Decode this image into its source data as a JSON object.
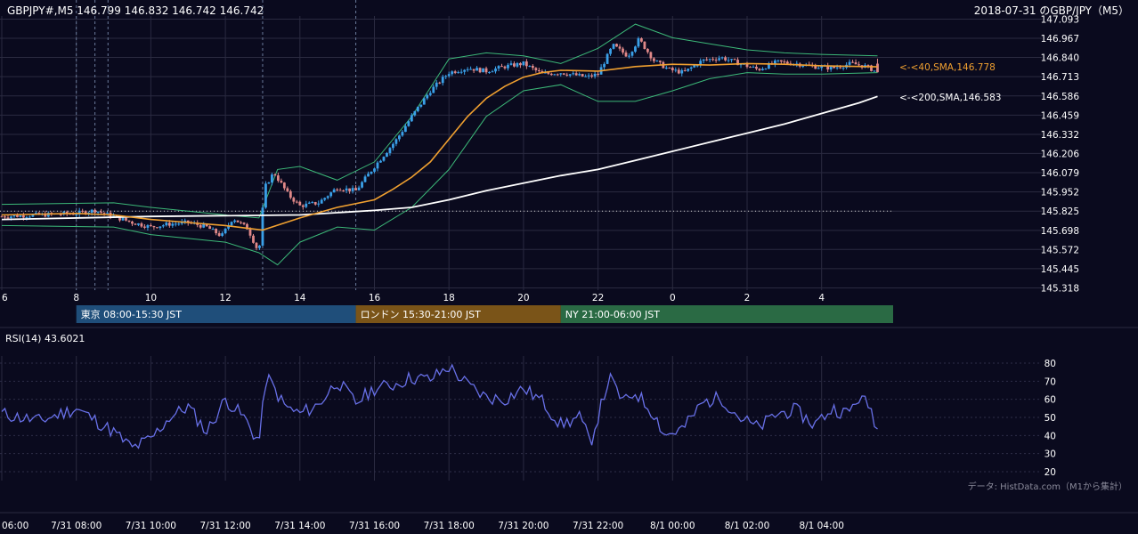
{
  "header": {
    "symbol_info": "GBPJPY#,M5 146.799 146.832 146.742 146.742",
    "title": "2018-07-31 のGBP/JPY（M5）"
  },
  "price_axis": {
    "ticks": [
      "147.093",
      "146.967",
      "146.840",
      "146.713",
      "146.586",
      "146.459",
      "146.332",
      "146.206",
      "146.079",
      "145.952",
      "145.825",
      "145.698",
      "145.572",
      "145.445",
      "145.318"
    ]
  },
  "hour_axis": {
    "ticks": [
      "6",
      "8",
      "10",
      "12",
      "14",
      "16",
      "18",
      "20",
      "22",
      "0",
      "2",
      "4"
    ]
  },
  "sma_labels": {
    "sma40": "<-<40,SMA,146.778",
    "sma200": "<-<200,SMA,146.583"
  },
  "sessions": [
    {
      "label": "東京 08:00-15:30 JST",
      "color": "#1f4e7a"
    },
    {
      "label": "ロンドン 15:30-21:00 JST",
      "color": "#7a5418"
    },
    {
      "label": "NY 21:00-06:00 JST",
      "color": "#2a6a44"
    }
  ],
  "rsi": {
    "label": "RSI(14) 43.6021",
    "ticks": [
      "80",
      "70",
      "60",
      "50",
      "40",
      "30",
      "20"
    ]
  },
  "source_note": "データ: HistData.com（M1から集計）",
  "date_axis": {
    "ticks": [
      "06:00",
      "7/31 08:00",
      "7/31 10:00",
      "7/31 12:00",
      "7/31 14:00",
      "7/31 16:00",
      "7/31 18:00",
      "7/31 20:00",
      "7/31 22:00",
      "8/1 00:00",
      "8/1 02:00",
      "8/1 04:00"
    ]
  },
  "colors": {
    "background": "#0a0a1e",
    "bull": "#3aa0e8",
    "bear": "#e08888",
    "sma40": "#f0a030",
    "sma200": "#ffffff",
    "bands": "#3cb878",
    "rsi_line": "#6870e8",
    "grid": "#2a2a40"
  },
  "chart_data": {
    "type": "candlestick",
    "title": "2018-07-31 のGBP/JPY（M5）",
    "symbol": "GBPJPY#",
    "timeframe": "M5",
    "ylim": [
      145.318,
      147.093
    ],
    "last_ohlc": {
      "open": 146.799,
      "high": 146.832,
      "low": 146.742,
      "close": 146.742
    },
    "sma40_last": 146.778,
    "sma200_last": 146.583,
    "reference_level": 145.825,
    "rsi_period": 14,
    "rsi_last": 43.6021,
    "rsi_ylim": [
      20,
      80
    ],
    "x_hour_ticks": [
      6,
      8,
      10,
      12,
      14,
      16,
      18,
      20,
      22,
      0,
      2,
      4
    ],
    "sessions_jst": [
      {
        "name": "東京",
        "start": "08:00",
        "end": "15:30"
      },
      {
        "name": "ロンドン",
        "start": "15:30",
        "end": "21:00"
      },
      {
        "name": "NY",
        "start": "21:00",
        "end": "06:00"
      }
    ],
    "close_path": [
      {
        "hour": 6.0,
        "close": 145.79
      },
      {
        "hour": 7.0,
        "close": 145.8
      },
      {
        "hour": 8.0,
        "close": 145.81
      },
      {
        "hour": 8.5,
        "close": 145.83
      },
      {
        "hour": 9.0,
        "close": 145.79
      },
      {
        "hour": 9.5,
        "close": 145.75
      },
      {
        "hour": 10.0,
        "close": 145.72
      },
      {
        "hour": 10.5,
        "close": 145.74
      },
      {
        "hour": 11.0,
        "close": 145.75
      },
      {
        "hour": 11.5,
        "close": 145.72
      },
      {
        "hour": 11.9,
        "close": 145.66
      },
      {
        "hour": 12.2,
        "close": 145.78
      },
      {
        "hour": 12.6,
        "close": 145.71
      },
      {
        "hour": 12.9,
        "close": 145.55
      },
      {
        "hour": 13.05,
        "close": 145.98
      },
      {
        "hour": 13.3,
        "close": 146.08
      },
      {
        "hour": 13.7,
        "close": 145.93
      },
      {
        "hour": 14.0,
        "close": 145.86
      },
      {
        "hour": 14.5,
        "close": 145.88
      },
      {
        "hour": 15.0,
        "close": 145.98
      },
      {
        "hour": 15.5,
        "close": 145.96
      },
      {
        "hour": 16.0,
        "close": 146.12
      },
      {
        "hour": 16.6,
        "close": 146.3
      },
      {
        "hour": 17.0,
        "close": 146.45
      },
      {
        "hour": 17.5,
        "close": 146.62
      },
      {
        "hour": 18.0,
        "close": 146.74
      },
      {
        "hour": 18.5,
        "close": 146.77
      },
      {
        "hour": 19.0,
        "close": 146.75
      },
      {
        "hour": 19.5,
        "close": 146.78
      },
      {
        "hour": 20.0,
        "close": 146.8
      },
      {
        "hour": 20.5,
        "close": 146.73
      },
      {
        "hour": 21.0,
        "close": 146.74
      },
      {
        "hour": 21.7,
        "close": 146.71
      },
      {
        "hour": 22.0,
        "close": 146.73
      },
      {
        "hour": 22.4,
        "close": 146.92
      },
      {
        "hour": 22.8,
        "close": 146.85
      },
      {
        "hour": 23.1,
        "close": 146.96
      },
      {
        "hour": 23.5,
        "close": 146.82
      },
      {
        "hour": 23.9,
        "close": 146.76
      },
      {
        "hour": 24.3,
        "close": 146.74
      },
      {
        "hour": 24.8,
        "close": 146.82
      },
      {
        "hour": 25.3,
        "close": 146.84
      },
      {
        "hour": 25.8,
        "close": 146.8
      },
      {
        "hour": 26.3,
        "close": 146.76
      },
      {
        "hour": 26.8,
        "close": 146.81
      },
      {
        "hour": 27.3,
        "close": 146.8
      },
      {
        "hour": 27.8,
        "close": 146.78
      },
      {
        "hour": 28.3,
        "close": 146.77
      },
      {
        "hour": 28.8,
        "close": 146.8
      },
      {
        "hour": 29.2,
        "close": 146.78
      },
      {
        "hour": 29.5,
        "close": 146.742
      }
    ],
    "sma40_path": [
      {
        "hour": 6.0,
        "value": 145.8
      },
      {
        "hour": 8.0,
        "value": 145.81
      },
      {
        "hour": 9.0,
        "value": 145.8
      },
      {
        "hour": 10.0,
        "value": 145.77
      },
      {
        "hour": 11.0,
        "value": 145.75
      },
      {
        "hour": 12.0,
        "value": 145.73
      },
      {
        "hour": 13.0,
        "value": 145.7
      },
      {
        "hour": 14.0,
        "value": 145.78
      },
      {
        "hour": 15.0,
        "value": 145.85
      },
      {
        "hour": 16.0,
        "value": 145.9
      },
      {
        "hour": 16.5,
        "value": 145.97
      },
      {
        "hour": 17.0,
        "value": 146.05
      },
      {
        "hour": 17.5,
        "value": 146.15
      },
      {
        "hour": 18.0,
        "value": 146.3
      },
      {
        "hour": 18.5,
        "value": 146.45
      },
      {
        "hour": 19.0,
        "value": 146.57
      },
      {
        "hour": 19.5,
        "value": 146.65
      },
      {
        "hour": 20.0,
        "value": 146.71
      },
      {
        "hour": 20.5,
        "value": 146.74
      },
      {
        "hour": 21.0,
        "value": 146.755
      },
      {
        "hour": 22.0,
        "value": 146.75
      },
      {
        "hour": 23.0,
        "value": 146.78
      },
      {
        "hour": 24.0,
        "value": 146.795
      },
      {
        "hour": 25.0,
        "value": 146.79
      },
      {
        "hour": 26.0,
        "value": 146.8
      },
      {
        "hour": 27.0,
        "value": 146.795
      },
      {
        "hour": 28.0,
        "value": 146.785
      },
      {
        "hour": 29.5,
        "value": 146.778
      }
    ],
    "sma200_path": [
      {
        "hour": 6.0,
        "value": 145.77
      },
      {
        "hour": 10.0,
        "value": 145.79
      },
      {
        "hour": 14.0,
        "value": 145.8
      },
      {
        "hour": 16.0,
        "value": 145.83
      },
      {
        "hour": 17.0,
        "value": 145.85
      },
      {
        "hour": 18.0,
        "value": 145.9
      },
      {
        "hour": 19.0,
        "value": 145.96
      },
      {
        "hour": 20.0,
        "value": 146.01
      },
      {
        "hour": 21.0,
        "value": 146.06
      },
      {
        "hour": 22.0,
        "value": 146.1
      },
      {
        "hour": 23.0,
        "value": 146.16
      },
      {
        "hour": 24.0,
        "value": 146.22
      },
      {
        "hour": 25.0,
        "value": 146.28
      },
      {
        "hour": 26.0,
        "value": 146.34
      },
      {
        "hour": 27.0,
        "value": 146.4
      },
      {
        "hour": 28.0,
        "value": 146.47
      },
      {
        "hour": 29.0,
        "value": 146.54
      },
      {
        "hour": 29.5,
        "value": 146.583
      }
    ],
    "bands_upper": [
      {
        "hour": 6.0,
        "value": 145.87
      },
      {
        "hour": 9.0,
        "value": 145.88
      },
      {
        "hour": 10.0,
        "value": 145.85
      },
      {
        "hour": 12.0,
        "value": 145.8
      },
      {
        "hour": 12.9,
        "value": 145.78
      },
      {
        "hour": 13.4,
        "value": 146.1
      },
      {
        "hour": 14.0,
        "value": 146.12
      },
      {
        "hour": 15.0,
        "value": 146.03
      },
      {
        "hour": 16.0,
        "value": 146.15
      },
      {
        "hour": 17.0,
        "value": 146.45
      },
      {
        "hour": 18.0,
        "value": 146.83
      },
      {
        "hour": 19.0,
        "value": 146.87
      },
      {
        "hour": 20.0,
        "value": 146.85
      },
      {
        "hour": 21.0,
        "value": 146.8
      },
      {
        "hour": 22.0,
        "value": 146.9
      },
      {
        "hour": 23.0,
        "value": 147.06
      },
      {
        "hour": 24.0,
        "value": 146.97
      },
      {
        "hour": 25.0,
        "value": 146.93
      },
      {
        "hour": 26.0,
        "value": 146.89
      },
      {
        "hour": 27.0,
        "value": 146.87
      },
      {
        "hour": 28.0,
        "value": 146.86
      },
      {
        "hour": 29.5,
        "value": 146.85
      }
    ],
    "bands_lower": [
      {
        "hour": 6.0,
        "value": 145.73
      },
      {
        "hour": 9.0,
        "value": 145.72
      },
      {
        "hour": 10.0,
        "value": 145.67
      },
      {
        "hour": 12.0,
        "value": 145.62
      },
      {
        "hour": 12.9,
        "value": 145.55
      },
      {
        "hour": 13.4,
        "value": 145.47
      },
      {
        "hour": 14.0,
        "value": 145.62
      },
      {
        "hour": 15.0,
        "value": 145.72
      },
      {
        "hour": 16.0,
        "value": 145.7
      },
      {
        "hour": 17.0,
        "value": 145.85
      },
      {
        "hour": 18.0,
        "value": 146.1
      },
      {
        "hour": 19.0,
        "value": 146.45
      },
      {
        "hour": 20.0,
        "value": 146.62
      },
      {
        "hour": 21.0,
        "value": 146.66
      },
      {
        "hour": 22.0,
        "value": 146.55
      },
      {
        "hour": 23.0,
        "value": 146.55
      },
      {
        "hour": 24.0,
        "value": 146.62
      },
      {
        "hour": 25.0,
        "value": 146.7
      },
      {
        "hour": 26.0,
        "value": 146.74
      },
      {
        "hour": 27.0,
        "value": 146.73
      },
      {
        "hour": 28.0,
        "value": 146.73
      },
      {
        "hour": 29.5,
        "value": 146.74
      }
    ],
    "rsi_path": [
      {
        "hour": 6.0,
        "value": 52
      },
      {
        "hour": 7.0,
        "value": 48
      },
      {
        "hour": 8.0,
        "value": 55
      },
      {
        "hour": 9.0,
        "value": 42
      },
      {
        "hour": 9.5,
        "value": 33
      },
      {
        "hour": 10.0,
        "value": 38
      },
      {
        "hour": 10.5,
        "value": 50
      },
      {
        "hour": 11.0,
        "value": 56
      },
      {
        "hour": 11.5,
        "value": 42
      },
      {
        "hour": 12.0,
        "value": 60
      },
      {
        "hour": 12.5,
        "value": 50
      },
      {
        "hour": 12.9,
        "value": 36
      },
      {
        "hour": 13.1,
        "value": 73
      },
      {
        "hour": 13.6,
        "value": 56
      },
      {
        "hour": 14.0,
        "value": 52
      },
      {
        "hour": 14.5,
        "value": 57
      },
      {
        "hour": 15.0,
        "value": 70
      },
      {
        "hour": 15.5,
        "value": 58
      },
      {
        "hour": 16.0,
        "value": 66
      },
      {
        "hour": 16.5,
        "value": 68
      },
      {
        "hour": 17.0,
        "value": 72
      },
      {
        "hour": 17.5,
        "value": 71
      },
      {
        "hour": 18.0,
        "value": 78
      },
      {
        "hour": 18.5,
        "value": 68
      },
      {
        "hour": 19.0,
        "value": 61
      },
      {
        "hour": 19.5,
        "value": 60
      },
      {
        "hour": 20.0,
        "value": 66
      },
      {
        "hour": 20.5,
        "value": 59
      },
      {
        "hour": 21.0,
        "value": 46
      },
      {
        "hour": 21.5,
        "value": 50
      },
      {
        "hour": 21.8,
        "value": 36
      },
      {
        "hour": 22.3,
        "value": 72
      },
      {
        "hour": 22.7,
        "value": 58
      },
      {
        "hour": 23.0,
        "value": 64
      },
      {
        "hour": 23.5,
        "value": 52
      },
      {
        "hour": 23.8,
        "value": 40
      },
      {
        "hour": 24.3,
        "value": 44
      },
      {
        "hour": 24.8,
        "value": 58
      },
      {
        "hour": 25.3,
        "value": 61
      },
      {
        "hour": 25.8,
        "value": 50
      },
      {
        "hour": 26.3,
        "value": 44
      },
      {
        "hour": 26.8,
        "value": 52
      },
      {
        "hour": 27.3,
        "value": 54
      },
      {
        "hour": 27.8,
        "value": 46
      },
      {
        "hour": 28.3,
        "value": 55
      },
      {
        "hour": 28.7,
        "value": 52
      },
      {
        "hour": 29.0,
        "value": 61
      },
      {
        "hour": 29.3,
        "value": 56
      },
      {
        "hour": 29.5,
        "value": 43.6
      }
    ]
  }
}
